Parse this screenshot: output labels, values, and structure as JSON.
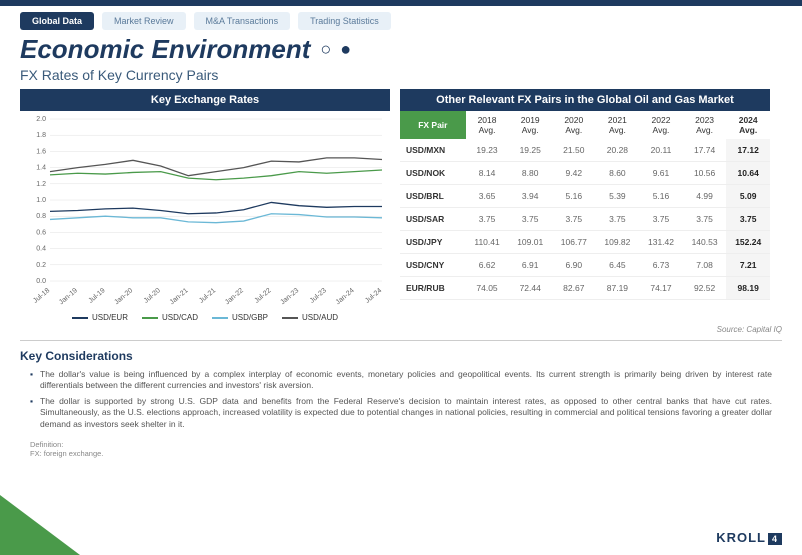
{
  "tabs": {
    "active": "Global Data",
    "items": [
      "Global Data",
      "Market Review",
      "M&A Transactions",
      "Trading Statistics"
    ]
  },
  "title": "Economic Environment",
  "subtitle": "FX Rates of Key Currency Pairs",
  "chart": {
    "header": "Key Exchange Rates",
    "ylim": [
      0,
      2.0
    ],
    "yticks": [
      0.0,
      0.2,
      0.4,
      0.6,
      0.8,
      1.0,
      1.2,
      1.4,
      1.6,
      1.8,
      2.0
    ],
    "xlabels": [
      "Jul-18",
      "Jan-19",
      "Jul-19",
      "Jan-20",
      "Jul-20",
      "Jan-21",
      "Jul-21",
      "Jan-22",
      "Jul-22",
      "Jan-23",
      "Jul-23",
      "Jan-24",
      "Jul-24"
    ],
    "series": [
      {
        "name": "USD/EUR",
        "color": "#1e3a5f",
        "values": [
          0.86,
          0.87,
          0.89,
          0.9,
          0.87,
          0.83,
          0.84,
          0.88,
          0.97,
          0.93,
          0.91,
          0.92,
          0.92
        ]
      },
      {
        "name": "USD/CAD",
        "color": "#4a9a4a",
        "values": [
          1.31,
          1.33,
          1.32,
          1.34,
          1.35,
          1.27,
          1.25,
          1.27,
          1.3,
          1.35,
          1.33,
          1.35,
          1.37
        ]
      },
      {
        "name": "USD/GBP",
        "color": "#6bb8d6",
        "values": [
          0.76,
          0.78,
          0.8,
          0.78,
          0.78,
          0.73,
          0.72,
          0.74,
          0.83,
          0.82,
          0.79,
          0.79,
          0.78
        ]
      },
      {
        "name": "USD/AUD",
        "color": "#555555",
        "values": [
          1.35,
          1.4,
          1.44,
          1.49,
          1.42,
          1.3,
          1.35,
          1.4,
          1.48,
          1.47,
          1.52,
          1.52,
          1.5
        ]
      }
    ],
    "grid_color": "#e0e0e0",
    "bg_color": "#ffffff",
    "tick_fontsize": 7
  },
  "table": {
    "header": "Other Relevant FX Pairs in the Global Oil and Gas Market",
    "pair_head": "FX Pair",
    "year_heads": [
      "2018 Avg.",
      "2019 Avg.",
      "2020 Avg.",
      "2021 Avg.",
      "2022 Avg.",
      "2023 Avg.",
      "2024 Avg."
    ],
    "rows": [
      {
        "pair": "USD/MXN",
        "vals": [
          "19.23",
          "19.25",
          "21.50",
          "20.28",
          "20.11",
          "17.74",
          "17.12"
        ]
      },
      {
        "pair": "USD/NOK",
        "vals": [
          "8.14",
          "8.80",
          "9.42",
          "8.60",
          "9.61",
          "10.56",
          "10.64"
        ]
      },
      {
        "pair": "USD/BRL",
        "vals": [
          "3.65",
          "3.94",
          "5.16",
          "5.39",
          "5.16",
          "4.99",
          "5.09"
        ]
      },
      {
        "pair": "USD/SAR",
        "vals": [
          "3.75",
          "3.75",
          "3.75",
          "3.75",
          "3.75",
          "3.75",
          "3.75"
        ]
      },
      {
        "pair": "USD/JPY",
        "vals": [
          "110.41",
          "109.01",
          "106.77",
          "109.82",
          "131.42",
          "140.53",
          "152.24"
        ]
      },
      {
        "pair": "USD/CNY",
        "vals": [
          "6.62",
          "6.91",
          "6.90",
          "6.45",
          "6.73",
          "7.08",
          "7.21"
        ]
      },
      {
        "pair": "EUR/RUB",
        "vals": [
          "74.05",
          "72.44",
          "82.67",
          "87.19",
          "74.17",
          "92.52",
          "98.19"
        ]
      }
    ]
  },
  "source": "Source: Capital IQ",
  "considerations": {
    "title": "Key Considerations",
    "bullets": [
      "The dollar's value is being influenced by a complex interplay of economic events, monetary policies and geopolitical events. Its current strength is primarily being driven by interest rate differentials between the different currencies and investors' risk aversion.",
      "The dollar is supported by strong U.S. GDP data and benefits from the Federal Reserve's decision to maintain interest rates, as opposed to other central banks that have cut rates. Simultaneously, as the U.S. elections approach, increased volatility is expected due to potential changes in national policies, resulting in commercial and political tensions favoring a greater dollar demand as investors seek shelter in it."
    ]
  },
  "definition": {
    "label": "Definition:",
    "text": "FX: foreign exchange."
  },
  "footer": {
    "logo": "KROLL",
    "page": "4"
  }
}
